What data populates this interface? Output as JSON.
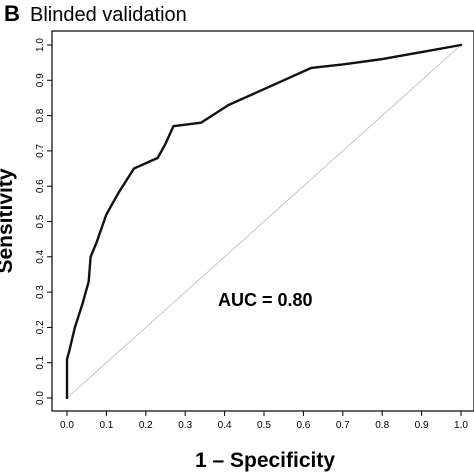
{
  "chart_data": {
    "type": "line",
    "panel_label": "B",
    "title": "Blinded validation",
    "xlabel": "1 – Specificity",
    "ylabel": "Sensitivity",
    "xlim": [
      0,
      1
    ],
    "ylim": [
      0,
      1
    ],
    "x_ticks": [
      "0.0",
      "0.1",
      "0.2",
      "0.3",
      "0.4",
      "0.5",
      "0.6",
      "0.7",
      "0.8",
      "0.9",
      "1.0"
    ],
    "y_ticks": [
      "0.0",
      "0.1",
      "0.2",
      "0.3",
      "0.4",
      "0.5",
      "0.6",
      "0.7",
      "0.8",
      "0.9",
      "1.0"
    ],
    "annotation": "AUC = 0.80",
    "grid": false,
    "series": [
      {
        "role": "roc-curve",
        "color": "#111111",
        "x": [
          0.0,
          0.0,
          0.005,
          0.02,
          0.04,
          0.055,
          0.06,
          0.075,
          0.1,
          0.13,
          0.17,
          0.21,
          0.23,
          0.25,
          0.27,
          0.34,
          0.41,
          0.48,
          0.55,
          0.62,
          0.7,
          0.8,
          0.9,
          1.0
        ],
        "y": [
          0.0,
          0.11,
          0.13,
          0.2,
          0.27,
          0.33,
          0.4,
          0.44,
          0.52,
          0.58,
          0.65,
          0.67,
          0.68,
          0.72,
          0.77,
          0.78,
          0.83,
          0.865,
          0.9,
          0.935,
          0.945,
          0.96,
          0.98,
          1.0
        ]
      },
      {
        "role": "reference-diagonal",
        "color": "#bbbbbb",
        "x": [
          0,
          1
        ],
        "y": [
          0,
          1
        ]
      }
    ]
  }
}
